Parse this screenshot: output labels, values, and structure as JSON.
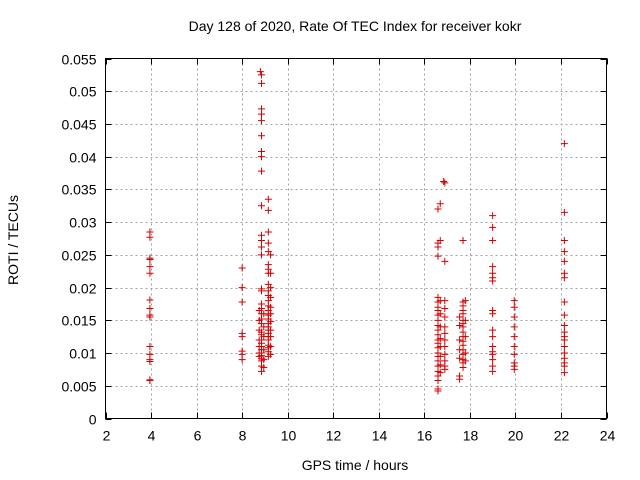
{
  "chart_data": {
    "type": "scatter",
    "title": "Day 128 of 2020, Rate Of TEC Index for receiver kokr",
    "xlabel": "GPS time / hours",
    "ylabel": "ROTI / TECUs",
    "xlim": [
      2,
      24
    ],
    "ylim": [
      0,
      0.055
    ],
    "xticks": [
      2,
      4,
      6,
      8,
      10,
      12,
      14,
      16,
      18,
      20,
      22,
      24
    ],
    "yticks": [
      0,
      0.005,
      0.01,
      0.015,
      0.02,
      0.025,
      0.03,
      0.035,
      0.04,
      0.045,
      0.05,
      0.055
    ],
    "xtick_labels": [
      "2",
      "4",
      "6",
      "8",
      "10",
      "12",
      "14",
      "16",
      "18",
      "20",
      "22",
      "24"
    ],
    "ytick_labels": [
      "0",
      "0.005",
      "0.01",
      "0.015",
      "0.02",
      "0.025",
      "0.03",
      "0.035",
      "0.04",
      "0.045",
      "0.05",
      "0.055"
    ],
    "grid": true,
    "marker": "plus",
    "color": "#d40000",
    "points": [
      [
        3.95,
        0.0285
      ],
      [
        3.95,
        0.0277
      ],
      [
        3.95,
        0.0245
      ],
      [
        3.95,
        0.0243
      ],
      [
        3.95,
        0.0232
      ],
      [
        3.95,
        0.0222
      ],
      [
        3.95,
        0.0181
      ],
      [
        3.95,
        0.0168
      ],
      [
        3.95,
        0.0158
      ],
      [
        3.95,
        0.0155
      ],
      [
        3.95,
        0.011
      ],
      [
        3.95,
        0.0098
      ],
      [
        3.95,
        0.009
      ],
      [
        3.95,
        0.0087
      ],
      [
        3.95,
        0.0059
      ],
      [
        3.95,
        0.0058
      ],
      [
        8.0,
        0.023
      ],
      [
        8.0,
        0.02
      ],
      [
        8.0,
        0.0178
      ],
      [
        8.0,
        0.013
      ],
      [
        8.0,
        0.0125
      ],
      [
        8.0,
        0.0103
      ],
      [
        8.0,
        0.0098
      ],
      [
        8.0,
        0.009
      ],
      [
        8.8,
        0.053
      ],
      [
        8.85,
        0.0525
      ],
      [
        8.85,
        0.0512
      ],
      [
        8.85,
        0.0473
      ],
      [
        8.85,
        0.0465
      ],
      [
        8.85,
        0.0455
      ],
      [
        8.85,
        0.0432
      ],
      [
        8.85,
        0.0408
      ],
      [
        8.85,
        0.04
      ],
      [
        8.85,
        0.0378
      ],
      [
        8.85,
        0.0325
      ],
      [
        8.85,
        0.028
      ],
      [
        8.85,
        0.0272
      ],
      [
        8.85,
        0.0262
      ],
      [
        8.85,
        0.025
      ],
      [
        8.85,
        0.0198
      ],
      [
        8.85,
        0.0195
      ],
      [
        8.85,
        0.0175
      ],
      [
        8.85,
        0.0168
      ],
      [
        8.85,
        0.016
      ],
      [
        8.85,
        0.0152
      ],
      [
        8.85,
        0.0145
      ],
      [
        8.85,
        0.0132
      ],
      [
        8.85,
        0.0128
      ],
      [
        8.85,
        0.012
      ],
      [
        8.85,
        0.0115
      ],
      [
        8.85,
        0.011
      ],
      [
        8.85,
        0.0105
      ],
      [
        8.85,
        0.01
      ],
      [
        8.85,
        0.0096
      ],
      [
        8.85,
        0.0092
      ],
      [
        8.85,
        0.0088
      ],
      [
        8.85,
        0.008
      ],
      [
        8.85,
        0.0072
      ],
      [
        8.75,
        0.0165
      ],
      [
        8.75,
        0.015
      ],
      [
        8.75,
        0.0135
      ],
      [
        8.75,
        0.012
      ],
      [
        8.75,
        0.011
      ],
      [
        8.75,
        0.01
      ],
      [
        8.75,
        0.0095
      ],
      [
        8.95,
        0.016
      ],
      [
        8.95,
        0.014
      ],
      [
        8.95,
        0.0125
      ],
      [
        8.95,
        0.0105
      ],
      [
        8.95,
        0.009
      ],
      [
        8.95,
        0.0078
      ],
      [
        9.15,
        0.0335
      ],
      [
        9.15,
        0.0318
      ],
      [
        9.15,
        0.0285
      ],
      [
        9.15,
        0.0268
      ],
      [
        9.15,
        0.0255
      ],
      [
        9.15,
        0.0235
      ],
      [
        9.15,
        0.0228
      ],
      [
        9.15,
        0.0222
      ],
      [
        9.15,
        0.0205
      ],
      [
        9.15,
        0.0195
      ],
      [
        9.15,
        0.0188
      ],
      [
        9.15,
        0.018
      ],
      [
        9.15,
        0.0172
      ],
      [
        9.15,
        0.0165
      ],
      [
        9.15,
        0.0158
      ],
      [
        9.15,
        0.0152
      ],
      [
        9.15,
        0.0145
      ],
      [
        9.15,
        0.014
      ],
      [
        9.15,
        0.0135
      ],
      [
        9.15,
        0.013
      ],
      [
        9.15,
        0.0125
      ],
      [
        9.15,
        0.012
      ],
      [
        9.15,
        0.0112
      ],
      [
        9.15,
        0.0108
      ],
      [
        9.15,
        0.0102
      ],
      [
        9.15,
        0.0095
      ],
      [
        9.25,
        0.025
      ],
      [
        9.25,
        0.0222
      ],
      [
        9.25,
        0.02
      ],
      [
        9.25,
        0.0185
      ],
      [
        9.25,
        0.017
      ],
      [
        9.25,
        0.016
      ],
      [
        9.25,
        0.0148
      ],
      [
        9.25,
        0.0135
      ],
      [
        9.25,
        0.0125
      ],
      [
        9.25,
        0.011
      ],
      [
        9.25,
        0.0098
      ],
      [
        16.6,
        0.032
      ],
      [
        16.6,
        0.0268
      ],
      [
        16.6,
        0.0262
      ],
      [
        16.6,
        0.0248
      ],
      [
        16.6,
        0.0185
      ],
      [
        16.6,
        0.0178
      ],
      [
        16.6,
        0.017
      ],
      [
        16.6,
        0.0165
      ],
      [
        16.6,
        0.0158
      ],
      [
        16.6,
        0.015
      ],
      [
        16.6,
        0.0142
      ],
      [
        16.6,
        0.0135
      ],
      [
        16.6,
        0.0128
      ],
      [
        16.6,
        0.012
      ],
      [
        16.6,
        0.0115
      ],
      [
        16.6,
        0.0108
      ],
      [
        16.6,
        0.01
      ],
      [
        16.6,
        0.0095
      ],
      [
        16.6,
        0.0088
      ],
      [
        16.6,
        0.008
      ],
      [
        16.6,
        0.0072
      ],
      [
        16.6,
        0.0065
      ],
      [
        16.6,
        0.0058
      ],
      [
        16.6,
        0.0045
      ],
      [
        16.6,
        0.0042
      ],
      [
        16.7,
        0.0328
      ],
      [
        16.7,
        0.0272
      ],
      [
        16.7,
        0.018
      ],
      [
        16.7,
        0.016
      ],
      [
        16.7,
        0.014
      ],
      [
        16.7,
        0.0122
      ],
      [
        16.7,
        0.011
      ],
      [
        16.7,
        0.0095
      ],
      [
        16.7,
        0.0082
      ],
      [
        16.7,
        0.007
      ],
      [
        16.85,
        0.0362
      ],
      [
        16.9,
        0.036
      ],
      [
        16.9,
        0.024
      ],
      [
        16.9,
        0.018
      ],
      [
        16.9,
        0.0168
      ],
      [
        16.9,
        0.0155
      ],
      [
        16.9,
        0.014
      ],
      [
        16.9,
        0.013
      ],
      [
        16.9,
        0.012
      ],
      [
        16.9,
        0.011
      ],
      [
        16.9,
        0.0098
      ],
      [
        16.9,
        0.0088
      ],
      [
        16.9,
        0.008
      ],
      [
        16.9,
        0.0075
      ],
      [
        17.55,
        0.0155
      ],
      [
        17.55,
        0.0142
      ],
      [
        17.55,
        0.012
      ],
      [
        17.55,
        0.0105
      ],
      [
        17.55,
        0.0092
      ],
      [
        17.55,
        0.0065
      ],
      [
        17.55,
        0.006
      ],
      [
        17.7,
        0.0272
      ],
      [
        17.7,
        0.0178
      ],
      [
        17.7,
        0.0172
      ],
      [
        17.7,
        0.0165
      ],
      [
        17.7,
        0.016
      ],
      [
        17.7,
        0.015
      ],
      [
        17.7,
        0.0145
      ],
      [
        17.7,
        0.014
      ],
      [
        17.7,
        0.0132
      ],
      [
        17.7,
        0.0125
      ],
      [
        17.7,
        0.0118
      ],
      [
        17.7,
        0.0112
      ],
      [
        17.7,
        0.0105
      ],
      [
        17.7,
        0.0098
      ],
      [
        17.7,
        0.009
      ],
      [
        17.7,
        0.0085
      ],
      [
        17.7,
        0.0078
      ],
      [
        17.8,
        0.018
      ],
      [
        17.8,
        0.015
      ],
      [
        17.8,
        0.0125
      ],
      [
        17.8,
        0.01
      ],
      [
        17.8,
        0.0088
      ],
      [
        19.0,
        0.031
      ],
      [
        19.0,
        0.0292
      ],
      [
        19.0,
        0.0272
      ],
      [
        19.0,
        0.0232
      ],
      [
        19.0,
        0.0222
      ],
      [
        19.0,
        0.0215
      ],
      [
        19.0,
        0.021
      ],
      [
        19.0,
        0.0165
      ],
      [
        19.0,
        0.016
      ],
      [
        19.0,
        0.0135
      ],
      [
        19.0,
        0.0125
      ],
      [
        19.0,
        0.011
      ],
      [
        19.0,
        0.0102
      ],
      [
        19.0,
        0.0098
      ],
      [
        19.0,
        0.009
      ],
      [
        19.0,
        0.008
      ],
      [
        19.0,
        0.0072
      ],
      [
        19.95,
        0.018
      ],
      [
        19.95,
        0.017
      ],
      [
        19.95,
        0.0155
      ],
      [
        19.95,
        0.014
      ],
      [
        19.95,
        0.0125
      ],
      [
        19.95,
        0.011
      ],
      [
        19.95,
        0.0098
      ],
      [
        19.95,
        0.0085
      ],
      [
        19.95,
        0.008
      ],
      [
        19.95,
        0.0075
      ],
      [
        22.15,
        0.042
      ],
      [
        22.15,
        0.0315
      ],
      [
        22.15,
        0.0272
      ],
      [
        22.15,
        0.0255
      ],
      [
        22.15,
        0.024
      ],
      [
        22.15,
        0.0222
      ],
      [
        22.15,
        0.0215
      ],
      [
        22.15,
        0.0178
      ],
      [
        22.15,
        0.0158
      ],
      [
        22.15,
        0.0142
      ],
      [
        22.15,
        0.0132
      ],
      [
        22.15,
        0.0125
      ],
      [
        22.15,
        0.012
      ],
      [
        22.15,
        0.011
      ],
      [
        22.15,
        0.01
      ],
      [
        22.15,
        0.0092
      ],
      [
        22.15,
        0.0085
      ],
      [
        22.15,
        0.008
      ],
      [
        22.15,
        0.007
      ]
    ]
  }
}
